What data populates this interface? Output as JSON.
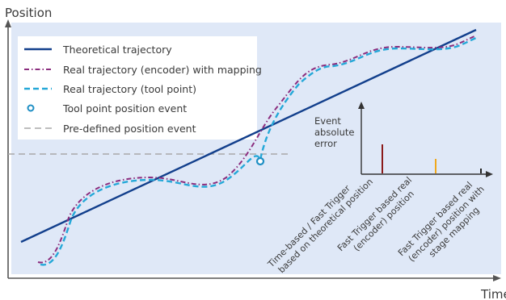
{
  "axes": {
    "y_label": "Position",
    "x_label": "Time"
  },
  "legend": {
    "items": [
      {
        "label": "Theoretical trajectory",
        "style": "solid",
        "color": "#123f8c"
      },
      {
        "label": "Real trajectory (encoder) with mapping",
        "style": "dash-dot",
        "color": "#8b2d7e"
      },
      {
        "label": "Real trajectory (tool point)",
        "style": "dashed",
        "color": "#25a8d8"
      },
      {
        "label": "Tool point position event",
        "style": "circle",
        "color": "#1f8fc4"
      },
      {
        "label": "Pre-defined position event",
        "style": "dashed",
        "color": "#a8a8a8"
      }
    ]
  },
  "inset": {
    "y_label_lines": [
      "Event",
      "absolute",
      "error"
    ],
    "bars": [
      {
        "label_lines": [
          "Time-based / Fast Trigger",
          "based on theoretical position"
        ],
        "value": 0.35,
        "color": "#8b1a1a"
      },
      {
        "label_lines": [
          "Fast Trigger based real",
          "(encoder) position"
        ],
        "value": 0.18,
        "color": "#f0a81c"
      },
      {
        "label_lines": [
          "Fast Trigger based real",
          "(encoder) position with",
          "stage mapping"
        ],
        "value": 0.05,
        "color": "#222222"
      }
    ]
  },
  "colors": {
    "plot_background": "#dfe8f7",
    "axis": "#555555"
  }
}
